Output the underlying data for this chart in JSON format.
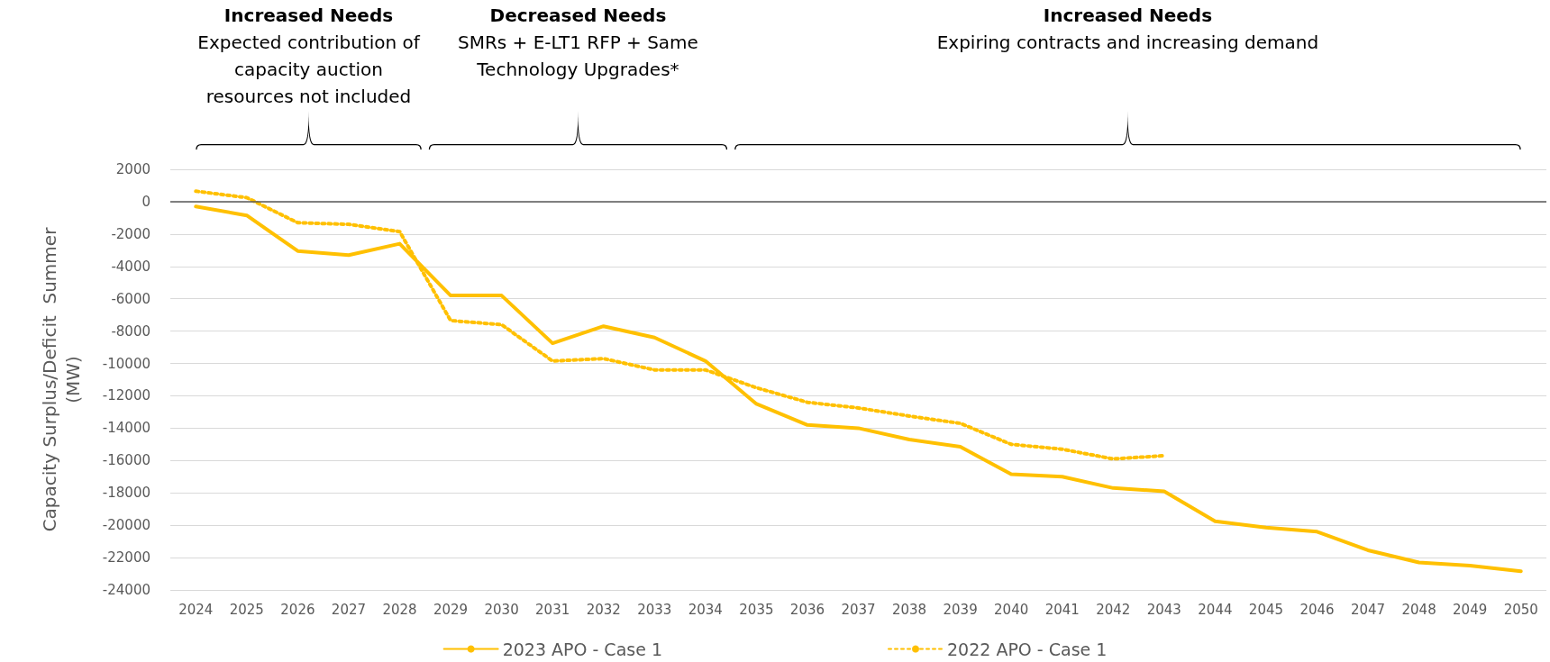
{
  "chart_data": {
    "type": "line",
    "ylabel": "Capacity Surplus/Deficit  Summer\n(MW)",
    "categories": [
      "2024",
      "2025",
      "2026",
      "2027",
      "2028",
      "2029",
      "2030",
      "2031",
      "2032",
      "2033",
      "2034",
      "2035",
      "2036",
      "2037",
      "2038",
      "2039",
      "2040",
      "2041",
      "2042",
      "2043",
      "2044",
      "2045",
      "2046",
      "2047",
      "2048",
      "2049",
      "2050"
    ],
    "series": [
      {
        "name": "2023 APO - Case 1",
        "color": "#ffc000",
        "line_style": "solid",
        "values": [
          -300,
          -850,
          -3050,
          -3300,
          -2600,
          -5800,
          -5800,
          -8750,
          -7700,
          -8400,
          -9850,
          -12500,
          -13800,
          -14000,
          -14700,
          -15150,
          -16850,
          -17000,
          -17700,
          -17900,
          -19750,
          -20150,
          -20400,
          -21550,
          -22300,
          -22500,
          -22850
        ]
      },
      {
        "name": "2022 APO - Case 1",
        "color": "#ffc000",
        "line_style": "dotted",
        "values": [
          650,
          250,
          -1300,
          -1400,
          -1850,
          -7350,
          -7600,
          -9850,
          -9700,
          -10400,
          -10400,
          -11500,
          -12400,
          -12750,
          -13250,
          -13700,
          -15000,
          -15300,
          -15900,
          -15700,
          null,
          null,
          null,
          null,
          null,
          null,
          null
        ]
      }
    ],
    "ylim": [
      -24000,
      2000
    ],
    "yticks": [
      -24000,
      -22000,
      -20000,
      -18000,
      -16000,
      -14000,
      -12000,
      -10000,
      -8000,
      -6000,
      -4000,
      -2000,
      0,
      2000
    ],
    "grid": "y",
    "legend": "bottom",
    "marker": "none",
    "ref_lines": [
      {
        "axis": "y",
        "value": 0,
        "color": "#595959"
      }
    ],
    "annotations": [
      "Increased Needs",
      "Expected contribution of capacity auction resources not included",
      "Decreased Needs",
      "SMRs + E-LT1 RFP + Same Technology Upgrades*",
      "Increased Needs",
      "Expiring contracts and increasing demand"
    ]
  }
}
